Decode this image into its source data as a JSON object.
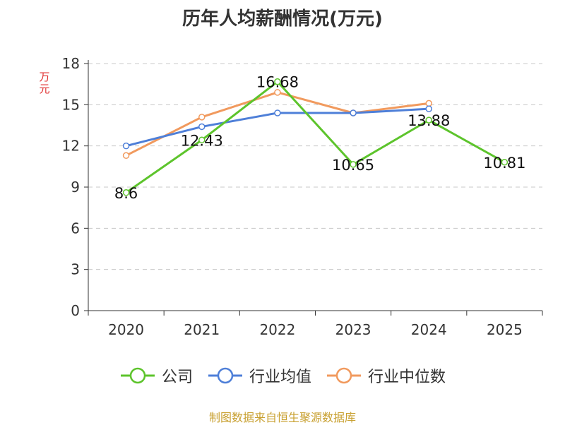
{
  "title": "历年人均薪酬情况(万元)",
  "source": "制图数据来自恒生聚源数据库",
  "chart_data": {
    "type": "line",
    "title": "历年人均薪酬情况(万元)",
    "ylabel": "万元",
    "xlabel": "",
    "categories": [
      "2020",
      "2021",
      "2022",
      "2023",
      "2024",
      "2025"
    ],
    "ylim": [
      0,
      18
    ],
    "yticks": [
      "0",
      "3",
      "6",
      "9",
      "12",
      "15",
      "18"
    ],
    "grid": "horizontal dashed",
    "legend_position": "bottom",
    "series": [
      {
        "name": "公司",
        "color": "#5dc42c",
        "values": [
          8.6,
          12.43,
          16.68,
          10.65,
          13.88,
          10.81
        ],
        "labels": [
          "8.6",
          "12.43",
          "16.68",
          "10.65",
          "13.88",
          "10.81"
        ]
      },
      {
        "name": "行业均值",
        "color": "#4e7fd8",
        "values": [
          12.0,
          13.4,
          14.4,
          14.4,
          14.7,
          null
        ],
        "labels": []
      },
      {
        "name": "行业中位数",
        "color": "#f19a5e",
        "values": [
          11.3,
          14.1,
          15.9,
          14.4,
          15.1,
          null
        ],
        "labels": []
      }
    ]
  }
}
